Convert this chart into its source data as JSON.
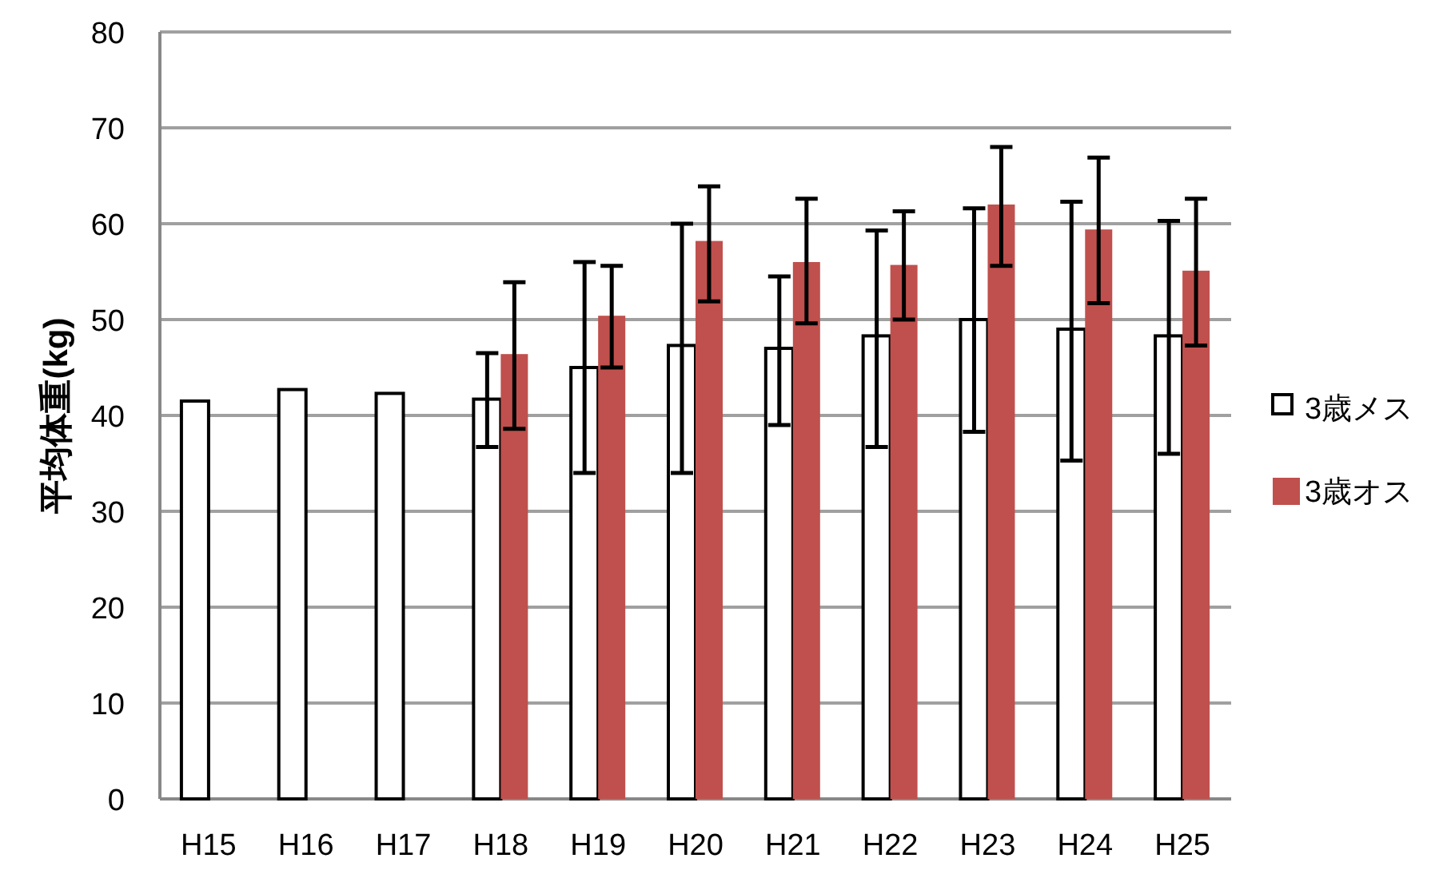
{
  "chart_data": {
    "type": "bar",
    "ylabel": "平均体重(kg)",
    "categories": [
      "H15",
      "H16",
      "H17",
      "H18",
      "H19",
      "H20",
      "H21",
      "H22",
      "H23",
      "H24",
      "H25"
    ],
    "series": [
      {
        "name": "3歳メス",
        "color": "#ffffff",
        "values": [
          41.5,
          42.7,
          42.3,
          41.7,
          45,
          47.3,
          47,
          48.3,
          50,
          49,
          48.3
        ],
        "errors": [
          null,
          null,
          null,
          [
            36.7,
            46.5
          ],
          [
            34,
            56
          ],
          [
            34,
            60
          ],
          [
            39,
            54.5
          ],
          [
            36.7,
            59.3
          ],
          [
            38.3,
            61.6
          ],
          [
            35.3,
            62.3
          ],
          [
            36,
            60.3
          ]
        ]
      },
      {
        "name": "3歳オス",
        "color": "#c0504d",
        "values": [
          null,
          null,
          null,
          46.4,
          50.4,
          58.2,
          56,
          55.7,
          62,
          59.4,
          55.1
        ],
        "errors": [
          null,
          null,
          null,
          [
            38.6,
            53.9
          ],
          [
            45,
            55.6
          ],
          [
            51.9,
            63.9
          ],
          [
            49.6,
            62.6
          ],
          [
            50,
            61.3
          ],
          [
            55.6,
            68
          ],
          [
            51.7,
            66.9
          ],
          [
            47.3,
            62.6
          ]
        ]
      }
    ],
    "ylim": [
      0,
      80
    ],
    "yticks": [
      0,
      10,
      20,
      30,
      40,
      50,
      60,
      70,
      80
    ],
    "grid": "y",
    "legend": "right"
  }
}
